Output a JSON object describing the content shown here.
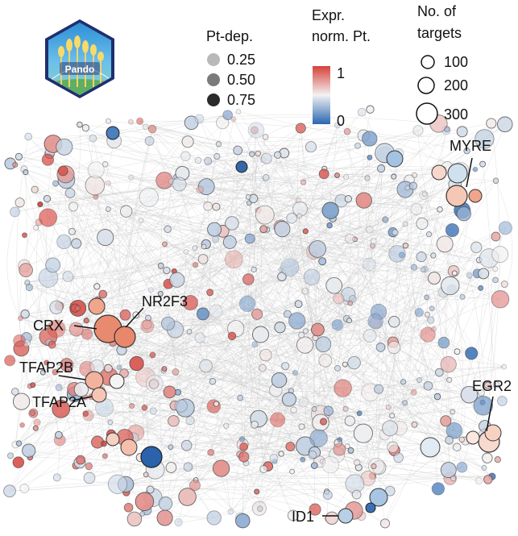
{
  "logo": {
    "text": "Pando"
  },
  "legend_pt_dep": {
    "title": "Pt-dep.",
    "items": [
      {
        "label": "0.25",
        "value": 0.25,
        "color": "#b9b9b9"
      },
      {
        "label": "0.50",
        "value": 0.5,
        "color": "#7a7a7a"
      },
      {
        "label": "0.75",
        "value": 0.75,
        "color": "#2b2b2b"
      }
    ]
  },
  "legend_expr": {
    "title_line1": "Expr.",
    "title_line2": "norm. Pt.",
    "max_label": "1",
    "min_label": "0",
    "colors": {
      "high": "#d6413a",
      "mid": "#f2f2f2",
      "low": "#2a66b0"
    }
  },
  "legend_targets": {
    "title_line1": "No. of",
    "title_line2": "targets",
    "items": [
      {
        "label": "100",
        "value": 100
      },
      {
        "label": "200",
        "value": 200
      },
      {
        "label": "300",
        "value": 300
      }
    ]
  },
  "gene_labels": [
    {
      "id": "myre",
      "text": "MYRE"
    },
    {
      "id": "nr2f3",
      "text": "NR2F3"
    },
    {
      "id": "crx",
      "text": "CRX"
    },
    {
      "id": "tfap2b",
      "text": "TFAP2B"
    },
    {
      "id": "tfap2a",
      "text": "TFAP2A"
    },
    {
      "id": "egr2",
      "text": "EGR2"
    },
    {
      "id": "id1",
      "text": "ID1"
    }
  ],
  "colors": {
    "edge": "#c9c9c9",
    "node_stroke": "#444444"
  }
}
